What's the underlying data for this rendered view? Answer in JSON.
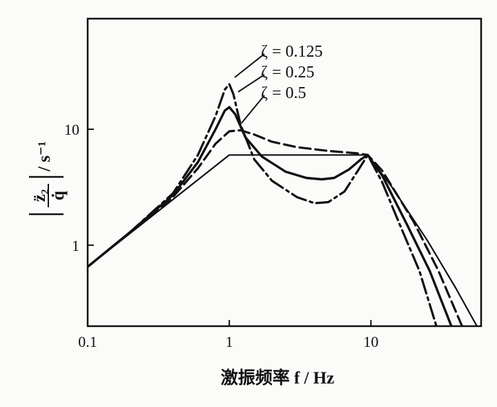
{
  "chart_data": {
    "type": "line",
    "xlabel": "激振频率 f / Hz",
    "ylabel_fraction_numerator": "z̈₂",
    "ylabel_fraction_denominator": "q̇",
    "ylabel_unit": "/ s⁻¹",
    "xscale": "log",
    "yscale": "log",
    "xlim": [
      0.1,
      60
    ],
    "ylim": [
      0.2,
      90
    ],
    "x_ticks": [
      0.1,
      1,
      10
    ],
    "x_tick_labels": [
      "0.1",
      "1",
      "10"
    ],
    "y_ticks": [
      1,
      10
    ],
    "y_tick_labels": [
      "1",
      "10"
    ],
    "grid": false,
    "legend_position": "top-center (labels with leader lines)",
    "series": [
      {
        "name": "ζ = 0.125",
        "style": "dash-dot",
        "points": [
          [
            0.1,
            0.65
          ],
          [
            0.2,
            1.3
          ],
          [
            0.4,
            2.8
          ],
          [
            0.6,
            6.0
          ],
          [
            0.8,
            13.0
          ],
          [
            0.93,
            22.0
          ],
          [
            1.0,
            24.5
          ],
          [
            1.07,
            20.0
          ],
          [
            1.2,
            11.0
          ],
          [
            1.5,
            5.5
          ],
          [
            2.0,
            3.6
          ],
          [
            3.0,
            2.6
          ],
          [
            4.0,
            2.3
          ],
          [
            5.0,
            2.35
          ],
          [
            6.5,
            2.9
          ],
          [
            8.0,
            4.3
          ],
          [
            9.5,
            6.0
          ],
          [
            12.0,
            3.5
          ],
          [
            16.0,
            1.5
          ],
          [
            22.0,
            0.6
          ],
          [
            29.0,
            0.2
          ]
        ]
      },
      {
        "name": "ζ = 0.25",
        "style": "solid",
        "points": [
          [
            0.1,
            0.65
          ],
          [
            0.2,
            1.3
          ],
          [
            0.4,
            2.7
          ],
          [
            0.6,
            5.2
          ],
          [
            0.8,
            10.0
          ],
          [
            0.93,
            14.5
          ],
          [
            1.0,
            15.5
          ],
          [
            1.1,
            13.5
          ],
          [
            1.3,
            8.5
          ],
          [
            1.7,
            5.8
          ],
          [
            2.5,
            4.3
          ],
          [
            3.5,
            3.8
          ],
          [
            4.5,
            3.7
          ],
          [
            5.5,
            3.8
          ],
          [
            7.0,
            4.5
          ],
          [
            8.5,
            5.5
          ],
          [
            9.5,
            6.0
          ],
          [
            12.0,
            4.0
          ],
          [
            18.0,
            1.5
          ],
          [
            26.0,
            0.6
          ],
          [
            37.0,
            0.2
          ]
        ]
      },
      {
        "name": "ζ = 0.5",
        "style": "dashed",
        "points": [
          [
            0.1,
            0.65
          ],
          [
            0.2,
            1.3
          ],
          [
            0.4,
            2.6
          ],
          [
            0.6,
            4.6
          ],
          [
            0.8,
            7.5
          ],
          [
            1.0,
            9.6
          ],
          [
            1.2,
            9.8
          ],
          [
            1.5,
            9.0
          ],
          [
            2.0,
            7.8
          ],
          [
            3.0,
            7.0
          ],
          [
            5.0,
            6.5
          ],
          [
            8.0,
            6.2
          ],
          [
            9.5,
            6.0
          ],
          [
            12.0,
            4.4
          ],
          [
            20.0,
            1.6
          ],
          [
            30.0,
            0.6
          ],
          [
            44.0,
            0.2
          ]
        ]
      },
      {
        "name": "",
        "style": "solid-thin",
        "points": [
          [
            0.1,
            0.65
          ],
          [
            1.0,
            6.0
          ],
          [
            9.5,
            6.0
          ],
          [
            14.0,
            3.2
          ],
          [
            25.0,
            1.1
          ],
          [
            40.0,
            0.42
          ],
          [
            56.0,
            0.2
          ]
        ]
      }
    ]
  }
}
